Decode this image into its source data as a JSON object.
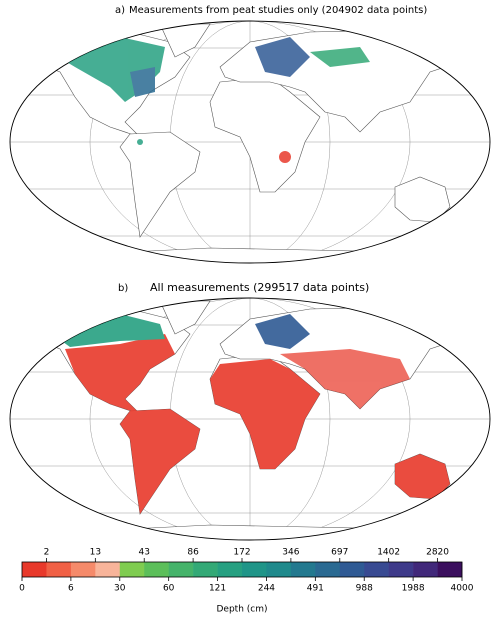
{
  "panels": [
    {
      "label": "a)",
      "title": "Measurements from peat studies only (204902 data points)"
    },
    {
      "label": "b)",
      "title": "All measurements (299517 data points)"
    }
  ],
  "colorbar": {
    "label": "Depth (cm)",
    "boundaries": [
      0,
      2,
      6,
      13,
      30,
      43,
      60,
      86,
      121,
      172,
      244,
      346,
      491,
      697,
      988,
      1402,
      1988,
      2820,
      4000
    ],
    "colors": [
      "#e8392b",
      "#f06045",
      "#f58a6a",
      "#f8b49a",
      "#7fcc50",
      "#5cbf5a",
      "#45b36a",
      "#33a976",
      "#26a081",
      "#1f9588",
      "#1f8a8c",
      "#23798f",
      "#2a6a92",
      "#2f5a94",
      "#384a92",
      "#3e3a8a",
      "#41287a",
      "#3b0f5e"
    ]
  }
}
